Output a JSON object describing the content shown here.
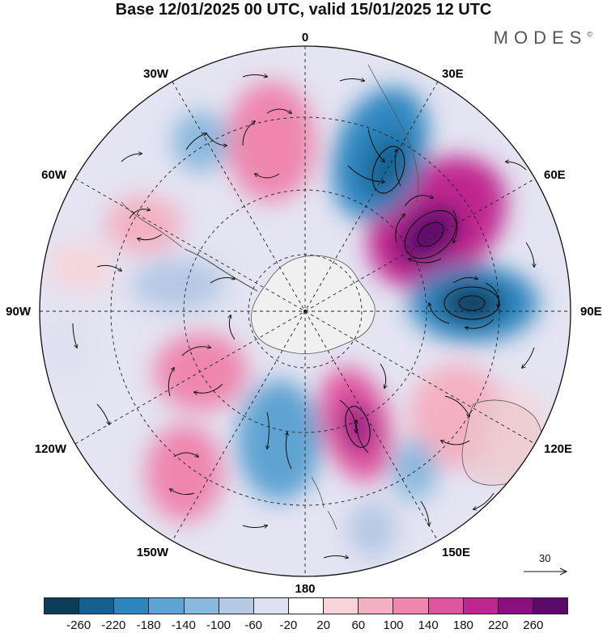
{
  "header": {
    "title": "Base 12/01/2025 00 UTC, valid 15/01/2025 12 UTC",
    "brand": "MODES"
  },
  "map": {
    "projection": "south-polar-stereographic",
    "longitude_labels": {
      "lon_0": "0",
      "lon_30e": "30E",
      "lon_60e": "60E",
      "lon_90e": "90E",
      "lon_120e": "120E",
      "lon_150e": "150E",
      "lon_180": "180",
      "lon_150w": "150W",
      "lon_120w": "120W",
      "lon_90w": "90W",
      "lon_60w": "60W",
      "lon_30w": "30W"
    },
    "reference_vector": "30",
    "land_color": "#f0f0f0"
  },
  "colorbar": {
    "ticks": [
      "-260",
      "-220",
      "-180",
      "-140",
      "-100",
      "-60",
      "-20",
      "20",
      "60",
      "100",
      "140",
      "180",
      "220",
      "260"
    ],
    "colors": [
      "#0d3b5a",
      "#16608f",
      "#2e86bf",
      "#5ea3d2",
      "#8bb8dd",
      "#b5c8e4",
      "#dedff0",
      "#ffffff",
      "#f6d4da",
      "#f3b0c2",
      "#ee86ad",
      "#e0559f",
      "#c0268f",
      "#8c0f7f",
      "#5b0a6c"
    ]
  }
}
